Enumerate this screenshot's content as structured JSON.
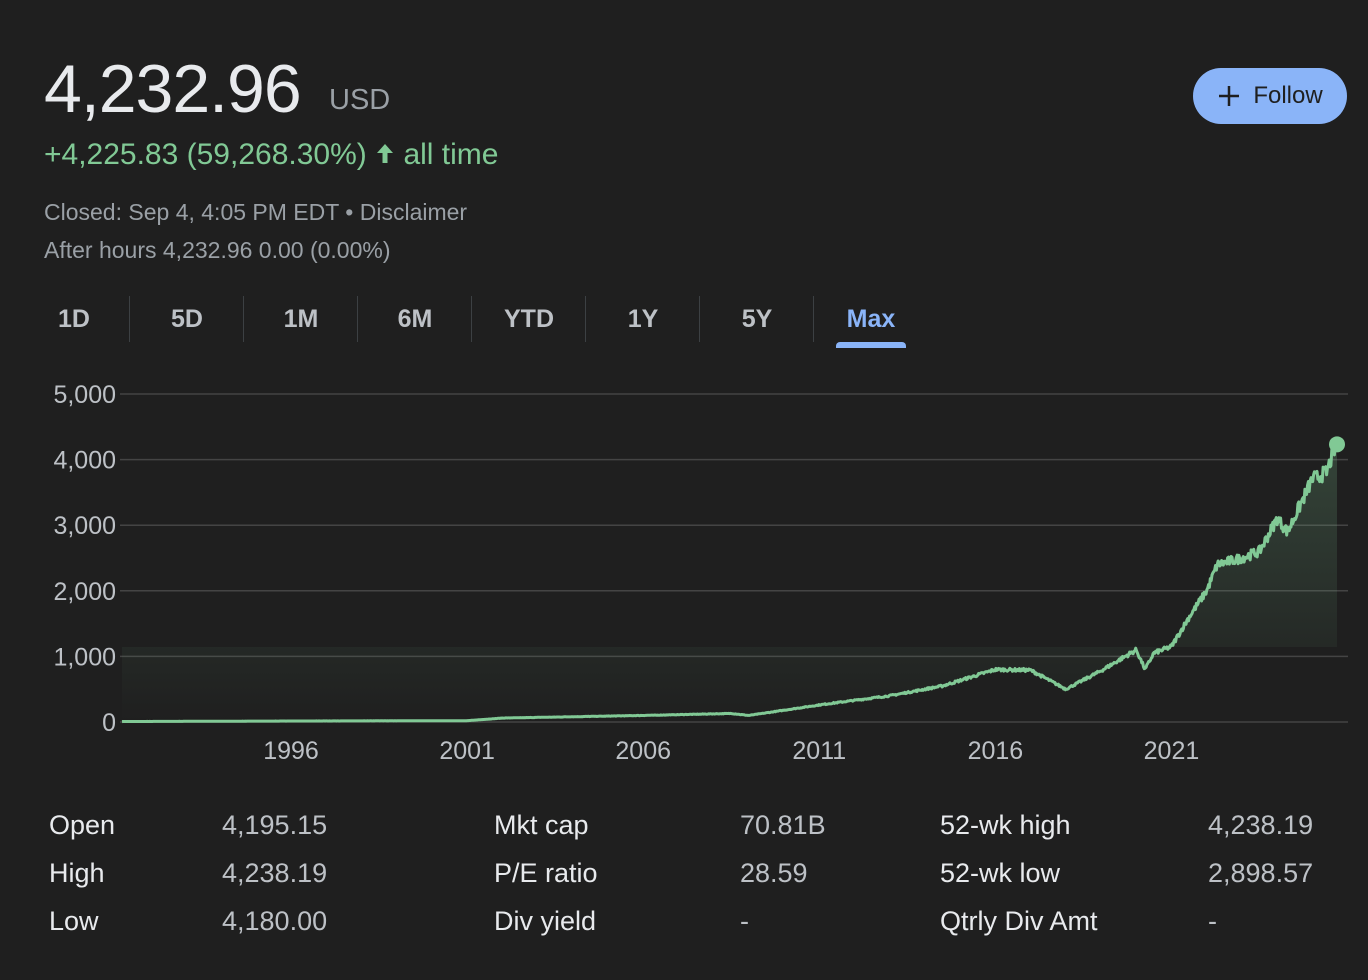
{
  "header": {
    "price": "4,232.96",
    "currency": "USD",
    "change": "+4,225.83 (59,268.30%)",
    "change_period": "all time",
    "closed": "Closed: Sep 4, 4:05 PM EDT",
    "separator": "•",
    "disclaimer": "Disclaimer",
    "after_hours": "After hours 4,232.96 0.00 (0.00%)",
    "follow_label": "Follow"
  },
  "tabs": [
    {
      "label": "1D"
    },
    {
      "label": "5D"
    },
    {
      "label": "1M"
    },
    {
      "label": "6M"
    },
    {
      "label": "YTD"
    },
    {
      "label": "1Y"
    },
    {
      "label": "5Y"
    },
    {
      "label": "Max",
      "active": true
    }
  ],
  "chart_data": {
    "type": "line",
    "title": "",
    "xlabel": "",
    "ylabel": "",
    "ylim": [
      0,
      5000
    ],
    "xlim": [
      1991.2,
      2025.7
    ],
    "y_ticks": [
      "0",
      "1,000",
      "2,000",
      "3,000",
      "4,000",
      "5,000"
    ],
    "y_tick_values": [
      0,
      1000,
      2000,
      3000,
      4000,
      5000
    ],
    "x_ticks": [
      "1996",
      "2001",
      "2006",
      "2011",
      "2016",
      "2021"
    ],
    "x_tick_values": [
      1996,
      2001,
      2006,
      2011,
      2016,
      2021
    ],
    "color": "#81c995",
    "x": [
      1991.2,
      1996,
      2001,
      2002,
      2004,
      2006,
      2008.5,
      2009,
      2011,
      2013,
      2014.5,
      2016,
      2017,
      2018,
      2019,
      2020,
      2020.25,
      2020.5,
      2021,
      2021.5,
      2022,
      2022.3,
      2023,
      2023.5,
      2024,
      2024.3,
      2025,
      2025.4,
      2025.68
    ],
    "values": [
      7,
      15,
      20,
      60,
      80,
      100,
      130,
      100,
      260,
      400,
      550,
      800,
      790,
      500,
      780,
      1100,
      800,
      1050,
      1150,
      1600,
      2000,
      2400,
      2500,
      2600,
      3100,
      2900,
      3700,
      3800,
      4233
    ]
  },
  "stats": [
    [
      {
        "label": "Open",
        "value": "4,195.15"
      },
      {
        "label": "High",
        "value": "4,238.19"
      },
      {
        "label": "Low",
        "value": "4,180.00"
      }
    ],
    [
      {
        "label": "Mkt cap",
        "value": "70.81B"
      },
      {
        "label": "P/E ratio",
        "value": "28.59"
      },
      {
        "label": "Div yield",
        "value": "-"
      }
    ],
    [
      {
        "label": "52-wk high",
        "value": "4,238.19"
      },
      {
        "label": "52-wk low",
        "value": "2,898.57"
      },
      {
        "label": "Qtrly Div Amt",
        "value": "-"
      }
    ]
  ]
}
